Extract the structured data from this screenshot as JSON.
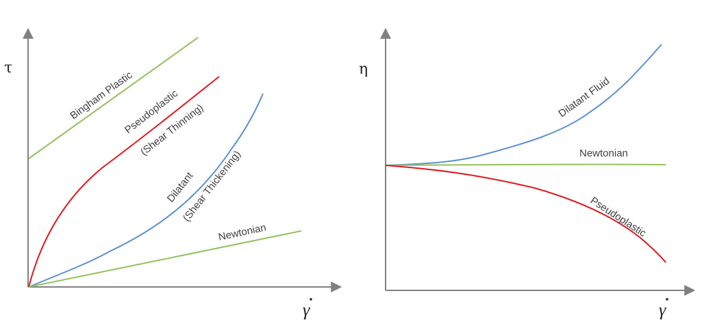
{
  "panels": [
    {
      "id": "shear-stress",
      "y_symbol": "τ",
      "x_symbol": "γ",
      "curves": [
        {
          "key": "bingham",
          "label": "Bingham Plastic",
          "color": "#92c15b"
        },
        {
          "key": "pseudo",
          "label": "Pseudoplastic",
          "label2": "(Shear Thinning)",
          "color": "#e0161d"
        },
        {
          "key": "dilatant",
          "label": "Dilatant",
          "label2": "(Shear Thickening)",
          "color": "#5b8fd1"
        },
        {
          "key": "newtonian",
          "label": "Newtonian",
          "color": "#92c15b"
        }
      ]
    },
    {
      "id": "viscosity",
      "y_symbol": "η",
      "x_symbol": "γ",
      "curves": [
        {
          "key": "dilatant",
          "label": "Dilatant Fluid",
          "color": "#5b8fd1"
        },
        {
          "key": "newtonian",
          "label": "Newtonian",
          "color": "#92c15b"
        },
        {
          "key": "pseudo",
          "label": "Pseudoplastic",
          "color": "#e0161d"
        }
      ]
    }
  ],
  "axis_color": "#808080"
}
